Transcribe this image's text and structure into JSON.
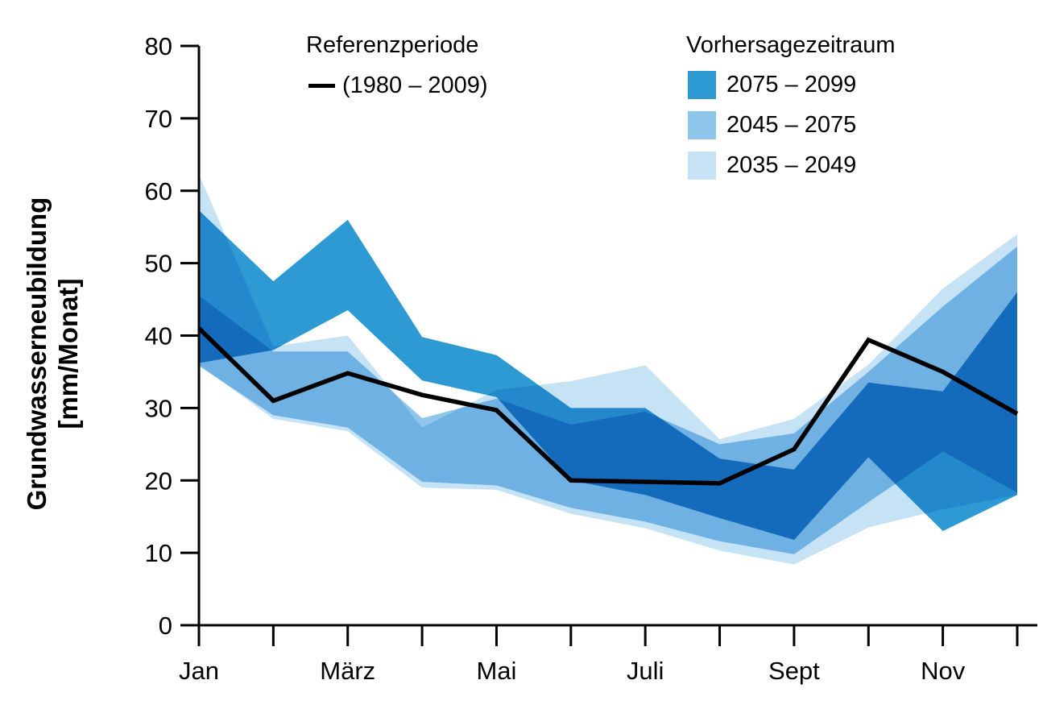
{
  "y_axis_label_line1": "Grundwasserneubildung",
  "y_axis_label_line2": "[mm/Monat]",
  "legend": {
    "reference_title": "Referenzperiode",
    "reference_label": "(1980 – 2009)",
    "forecast_title": "Vorhersagezeitraum",
    "forecast_items": [
      {
        "label": "2075 – 2099",
        "color": "#2e9ad4"
      },
      {
        "label": "2045 – 2075",
        "color": "#8fc7eb"
      },
      {
        "label": "2035 – 2049",
        "color": "#c6e3f6"
      }
    ]
  },
  "chart_data": {
    "type": "area",
    "ylabel": "Grundwasserneubildung [mm/Monat]",
    "x": [
      1,
      2,
      3,
      4,
      5,
      6,
      7,
      8,
      9,
      10,
      11,
      12
    ],
    "x_labels": [
      {
        "index": 0,
        "text": "Jan"
      },
      {
        "index": 2,
        "text": "März"
      },
      {
        "index": 4,
        "text": "Mai"
      },
      {
        "index": 6,
        "text": "Juli"
      },
      {
        "index": 8,
        "text": "Sept"
      },
      {
        "index": 10,
        "text": "Nov"
      }
    ],
    "ylim": [
      0,
      80
    ],
    "yticks": [
      0,
      10,
      20,
      30,
      40,
      50,
      60,
      70,
      80
    ],
    "grid": false,
    "legend_position": "top",
    "series": [
      {
        "name": "2035 – 2049",
        "type": "band",
        "color": "#c6e3f6",
        "lower": [
          36,
          28.5,
          26.8,
          19,
          18.7,
          15.4,
          13.4,
          10.3,
          8.4,
          13.5,
          16,
          18
        ],
        "upper": [
          62.3,
          38.5,
          40,
          27.3,
          32.5,
          33.7,
          35.9,
          25.7,
          28.5,
          36,
          46.5,
          54
        ]
      },
      {
        "name": "2045 – 2075",
        "type": "band",
        "color": "#8fc7eb",
        "lower": [
          35.8,
          29,
          27.3,
          19.8,
          19.3,
          16.2,
          14.3,
          11.6,
          9.8,
          17,
          24,
          18.3
        ],
        "upper": [
          45.5,
          37.8,
          37.8,
          28.6,
          31.3,
          27.7,
          29.5,
          25,
          26.5,
          35,
          44,
          52.3
        ]
      },
      {
        "name": "2075 – 2099",
        "type": "band",
        "color": "#2e9ad4",
        "lower": [
          36.2,
          38,
          43.5,
          33.8,
          31.5,
          20,
          18,
          14.8,
          11.8,
          23.2,
          13,
          18
        ],
        "upper": [
          57.3,
          47.5,
          56,
          39.8,
          37.3,
          30,
          30,
          23,
          21.5,
          33.5,
          32.3,
          46
        ]
      },
      {
        "name": "Referenzperiode (1980 – 2009)",
        "type": "line",
        "color": "#000000",
        "values": [
          41,
          31,
          34.8,
          31.8,
          29.7,
          20,
          19.8,
          19.6,
          24.3,
          39.4,
          35,
          29.2
        ]
      }
    ]
  }
}
